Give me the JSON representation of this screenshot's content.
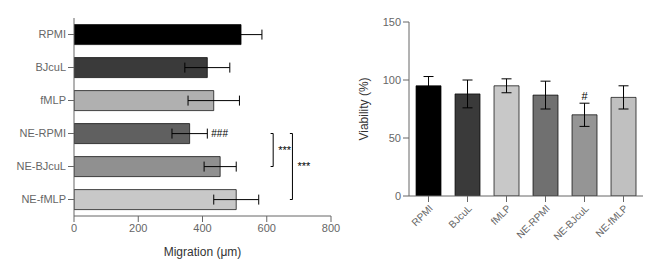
{
  "chart_data": [
    {
      "type": "bar",
      "orientation": "horizontal",
      "categories": [
        "RPMI",
        "BJcuL",
        "fMLP",
        "NE-RPMI",
        "NE-BJcuL",
        "NE-fMLP"
      ],
      "values": [
        520,
        415,
        435,
        360,
        455,
        505
      ],
      "errors": [
        65,
        70,
        80,
        55,
        50,
        70
      ],
      "colors": [
        "#000000",
        "#3a3a3a",
        "#b0b0b0",
        "#606060",
        "#909090",
        "#c8c8c8"
      ],
      "xlabel": "Migration (μm)",
      "xlim": [
        0,
        800
      ],
      "xticks": [
        0,
        200,
        400,
        600,
        800
      ],
      "annotations": [
        {
          "text": "###",
          "category": "NE-RPMI"
        },
        {
          "text": "***",
          "categories": [
            "NE-RPMI",
            "NE-BJcuL"
          ]
        },
        {
          "text": "***",
          "categories": [
            "NE-RPMI",
            "NE-fMLP"
          ]
        }
      ]
    },
    {
      "type": "bar",
      "categories": [
        "RPMI",
        "BJcuL",
        "fMLP",
        "NE-RPMI",
        "NE-BJcuL",
        "NE-fMLP"
      ],
      "values": [
        95,
        88,
        95,
        87,
        70,
        85
      ],
      "errors": [
        8,
        12,
        6,
        12,
        10,
        10
      ],
      "colors": [
        "#000000",
        "#3a3a3a",
        "#c8c8c8",
        "#707070",
        "#959595",
        "#c0c0c0"
      ],
      "ylabel": "Viability (%)",
      "ylim": [
        0,
        150
      ],
      "yticks": [
        0,
        50,
        100,
        150
      ],
      "annotations": [
        {
          "text": "#",
          "category": "NE-BJcuL"
        }
      ]
    }
  ]
}
